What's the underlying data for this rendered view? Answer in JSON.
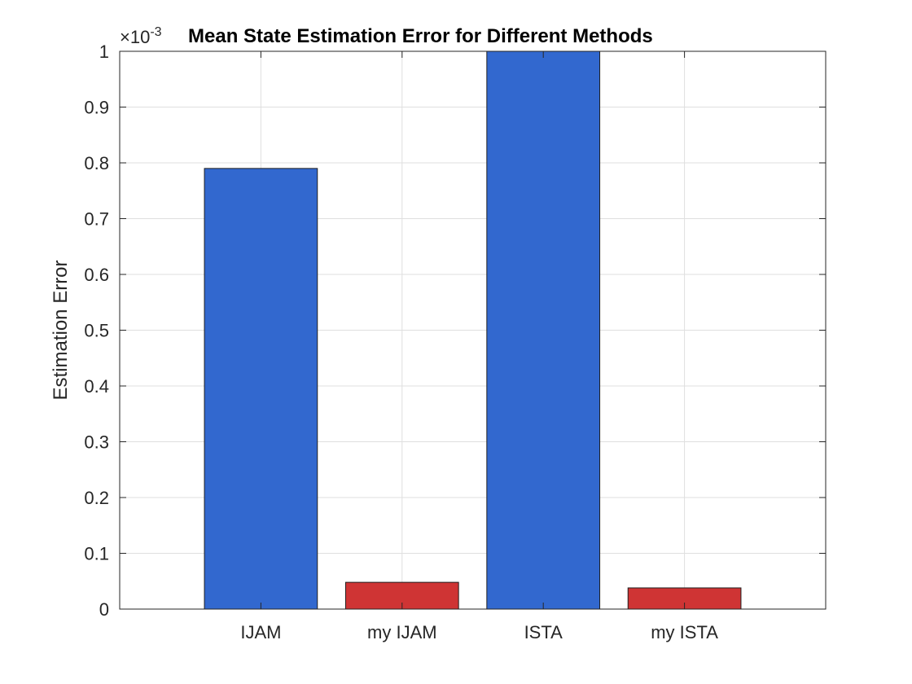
{
  "chart_data": {
    "type": "bar",
    "title": "Mean State Estimation Error for Different Methods",
    "xlabel": "",
    "ylabel": "Estimation Error",
    "y_exponent_base": "×10",
    "y_exponent_power": "-3",
    "categories": [
      "IJAM",
      "my IJAM",
      "ISTA",
      "my ISTA"
    ],
    "values": [
      0.79,
      0.048,
      1.0,
      0.038
    ],
    "value_scale": "x10^-3",
    "bar_colors": [
      "#3268cf",
      "#cf3434",
      "#3268cf",
      "#cf3434"
    ],
    "ylim": [
      0,
      1
    ],
    "yticks": [
      "0",
      "0.1",
      "0.2",
      "0.3",
      "0.4",
      "0.5",
      "0.6",
      "0.7",
      "0.8",
      "0.9",
      "1"
    ],
    "xlim": [
      0,
      5
    ],
    "grid": true
  }
}
